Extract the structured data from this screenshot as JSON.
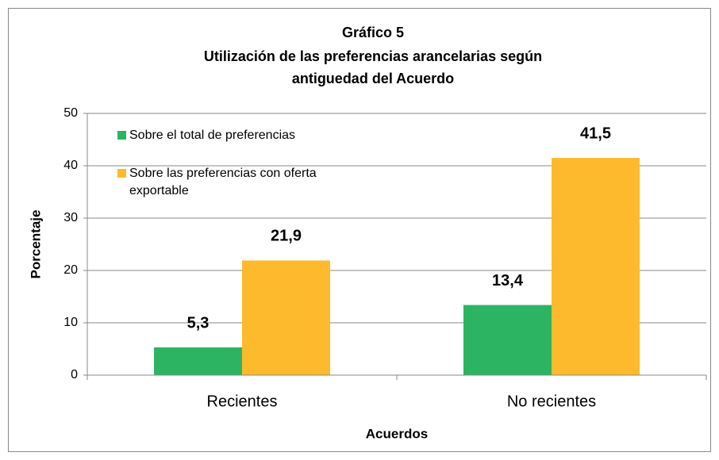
{
  "chart_data": {
    "type": "bar",
    "title": [
      "Gráfico 5",
      "Utilización de las preferencias arancelarias según",
      "antiguedad del Acuerdo"
    ],
    "x_label": "Acuerdos",
    "y_label": "Porcentaje",
    "categories": [
      "Recientes",
      "No recientes"
    ],
    "series": [
      {
        "name": "Sobre el total de preferencias",
        "color": "#2db463",
        "values": [
          5.3,
          13.4
        ],
        "value_labels": [
          "5,3",
          "13,4"
        ]
      },
      {
        "name": "Sobre las preferencias con oferta exportable",
        "color": "#fdba2c",
        "values": [
          21.9,
          41.5
        ],
        "value_labels": [
          "21,9",
          "41,5"
        ]
      }
    ],
    "ylim": [
      0,
      50
    ],
    "yticks": [
      0,
      10,
      20,
      30,
      40,
      50
    ],
    "grid": true,
    "legend": "top-left"
  }
}
